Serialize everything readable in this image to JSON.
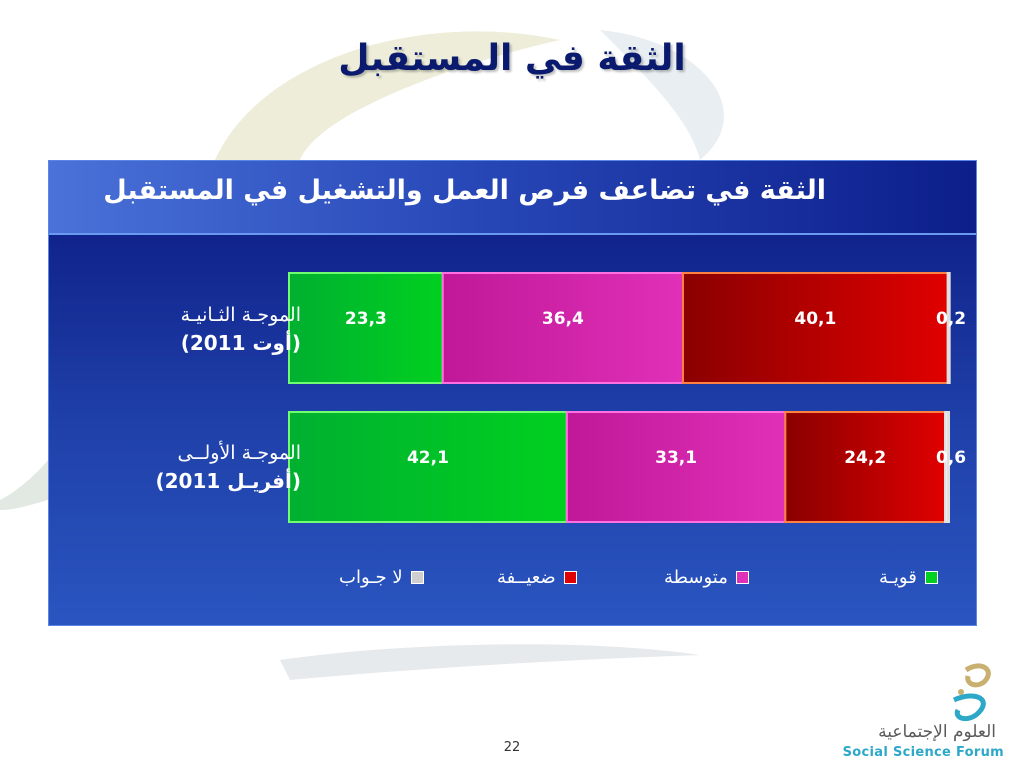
{
  "slide": {
    "title": "الثقة في المستقبل",
    "page_number": "22"
  },
  "colors": {
    "strong": "#00d020",
    "medium": "#e030b8",
    "weak": "#e00000",
    "no_answer": "#cfcfcf",
    "header_text": "#ffffff"
  },
  "chart_data": {
    "type": "bar",
    "orientation": "horizontal",
    "stacked": true,
    "percent": true,
    "title": "الثقة في تضاعف فرص العمل والتشغيل في المستقبل",
    "categories": [
      {
        "line1": "الموجـة الثـانيـة",
        "line2": "(أوت 2011)"
      },
      {
        "line1": "الموجـة الأولــى",
        "line2": "(أفريـل 2011)"
      }
    ],
    "series": [
      {
        "name": "قويـة",
        "color": "#00d020",
        "values": [
          23.3,
          42.1
        ],
        "labels": [
          "23,3",
          "42,1"
        ]
      },
      {
        "name": "متوسطة",
        "color": "#e030b8",
        "values": [
          36.4,
          33.1
        ],
        "labels": [
          "36,4",
          "33,1"
        ]
      },
      {
        "name": "ضعيــفة",
        "color": "#e00000",
        "values": [
          40.1,
          24.2
        ],
        "labels": [
          "40,1",
          "24,2"
        ]
      },
      {
        "name": "لا جـواب",
        "color": "#cfcfcf",
        "values": [
          0.2,
          0.6
        ],
        "labels": [
          "0,2",
          "0,6"
        ]
      }
    ],
    "legend_position": "bottom"
  },
  "logo": {
    "arabic": "العلوم الإجتماعية",
    "english": "Social Science Forum"
  }
}
